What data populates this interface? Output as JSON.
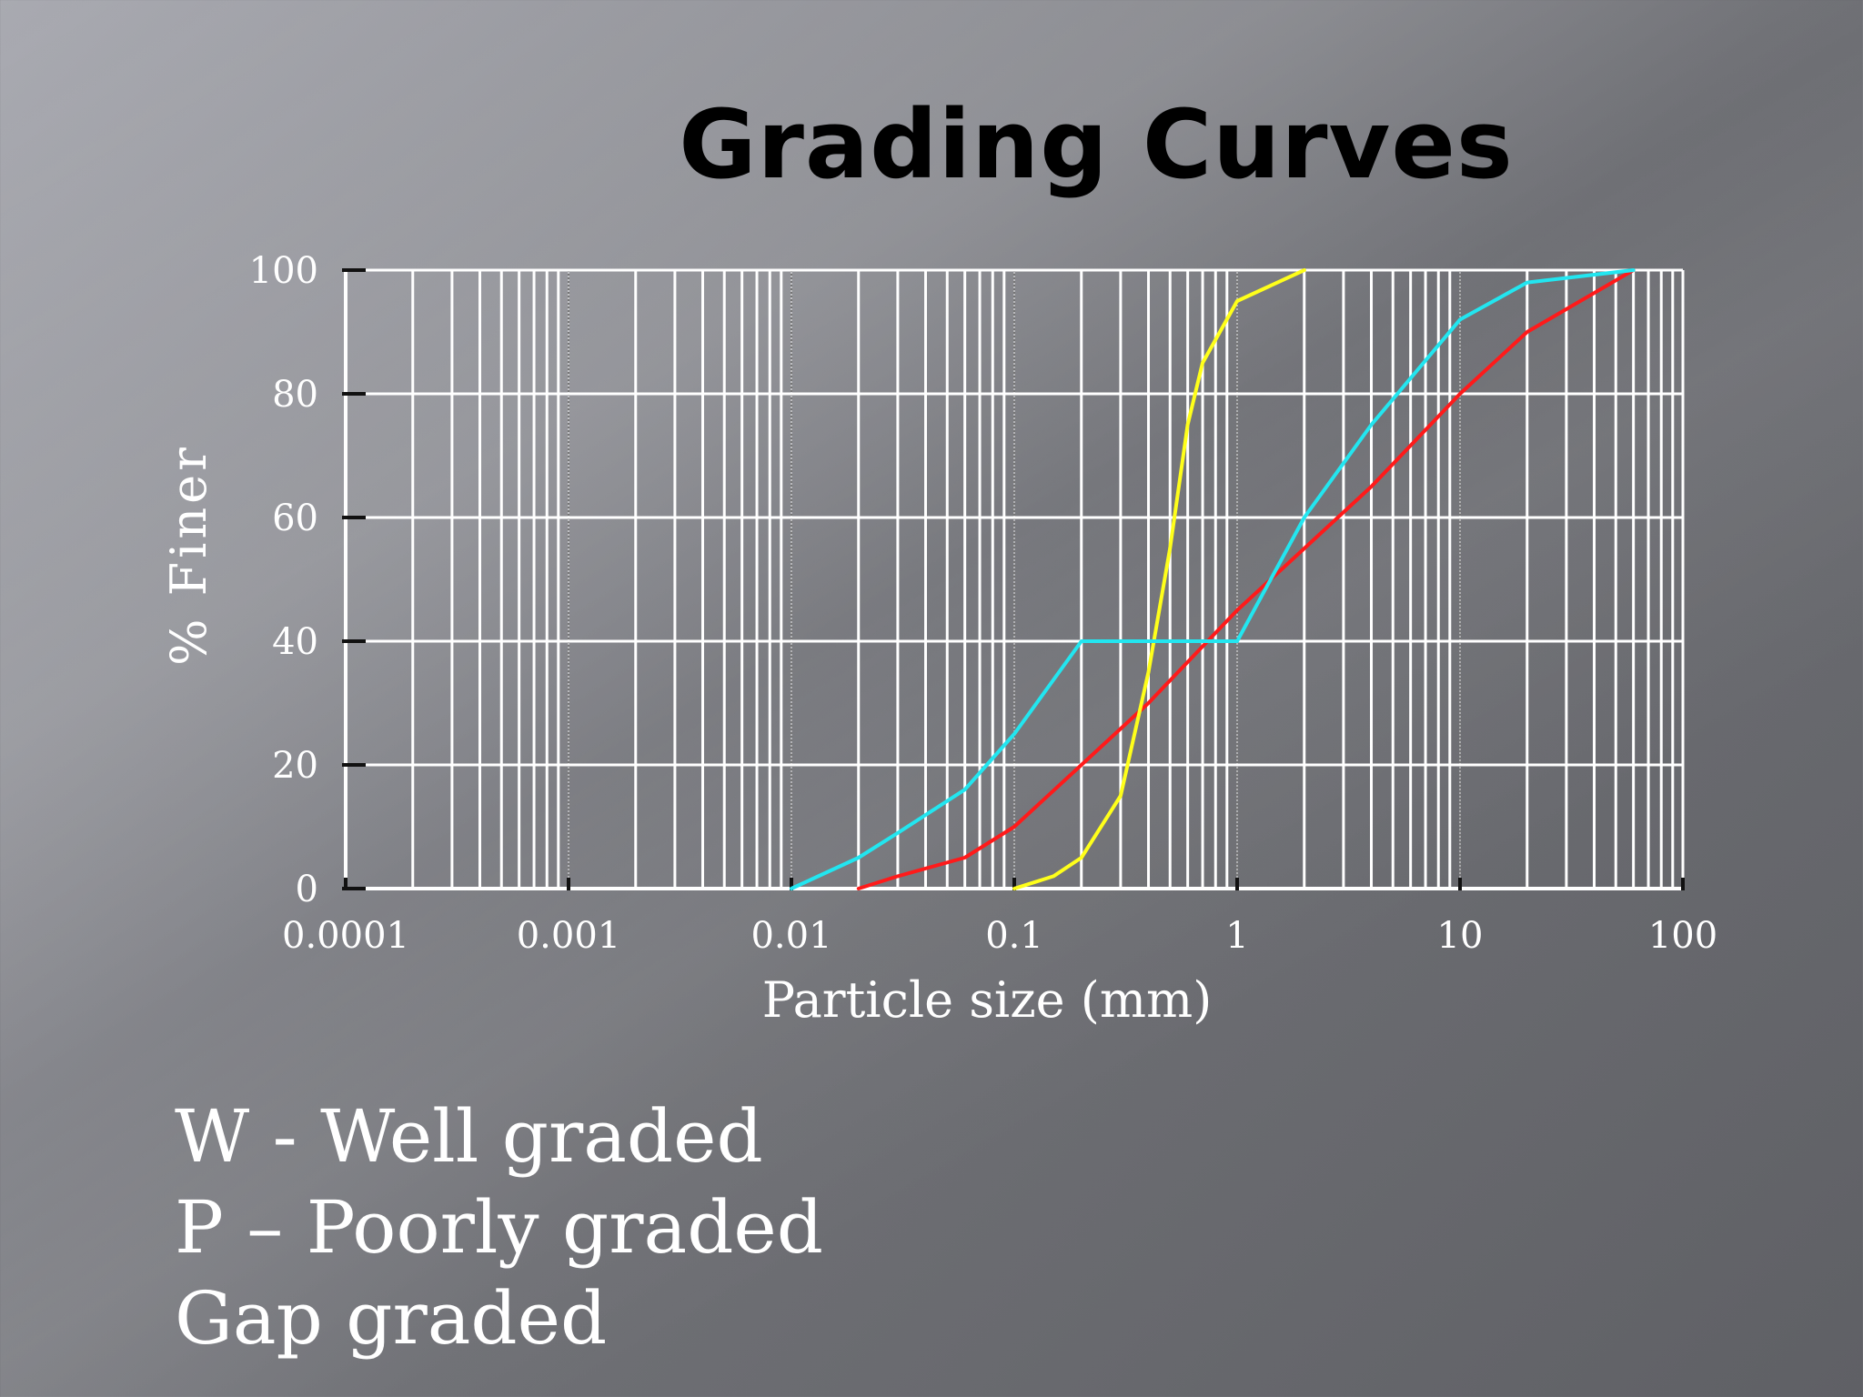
{
  "slide": {
    "title": "Grading Curves",
    "legend_lines": [
      "W - Well graded",
      "P – Poorly graded",
      "Gap graded"
    ]
  },
  "chart_data": {
    "type": "line",
    "title": "Grading Curves",
    "xlabel": "Particle size (mm)",
    "ylabel": "% Finer",
    "x_scale": "log",
    "xlim": [
      0.0001,
      100
    ],
    "ylim": [
      0,
      100
    ],
    "x_ticks": [
      "0.0001",
      "0.001",
      "0.01",
      "0.1",
      "1",
      "10",
      "100"
    ],
    "y_ticks": [
      "0",
      "20",
      "40",
      "60",
      "80",
      "100"
    ],
    "grid": true,
    "series": [
      {
        "color": "#ff1a1a",
        "x": [
          0.02,
          0.03,
          0.06,
          0.1,
          0.2,
          0.4,
          1,
          2,
          4,
          10,
          20,
          60
        ],
        "y": [
          0,
          2,
          5,
          10,
          20,
          30,
          45,
          55,
          65,
          80,
          90,
          100
        ]
      },
      {
        "color": "#ffff1a",
        "x": [
          0.1,
          0.15,
          0.2,
          0.3,
          0.4,
          0.5,
          0.6,
          0.7,
          1,
          2
        ],
        "y": [
          0,
          2,
          5,
          15,
          35,
          55,
          75,
          85,
          95,
          100
        ]
      },
      {
        "color": "#22e6f0",
        "x": [
          0.01,
          0.02,
          0.03,
          0.06,
          0.1,
          0.2,
          0.4,
          1,
          2,
          4,
          10,
          20,
          60
        ],
        "y": [
          0,
          5,
          9,
          16,
          25,
          40,
          40,
          40,
          60,
          75,
          92,
          98,
          100
        ]
      }
    ]
  }
}
